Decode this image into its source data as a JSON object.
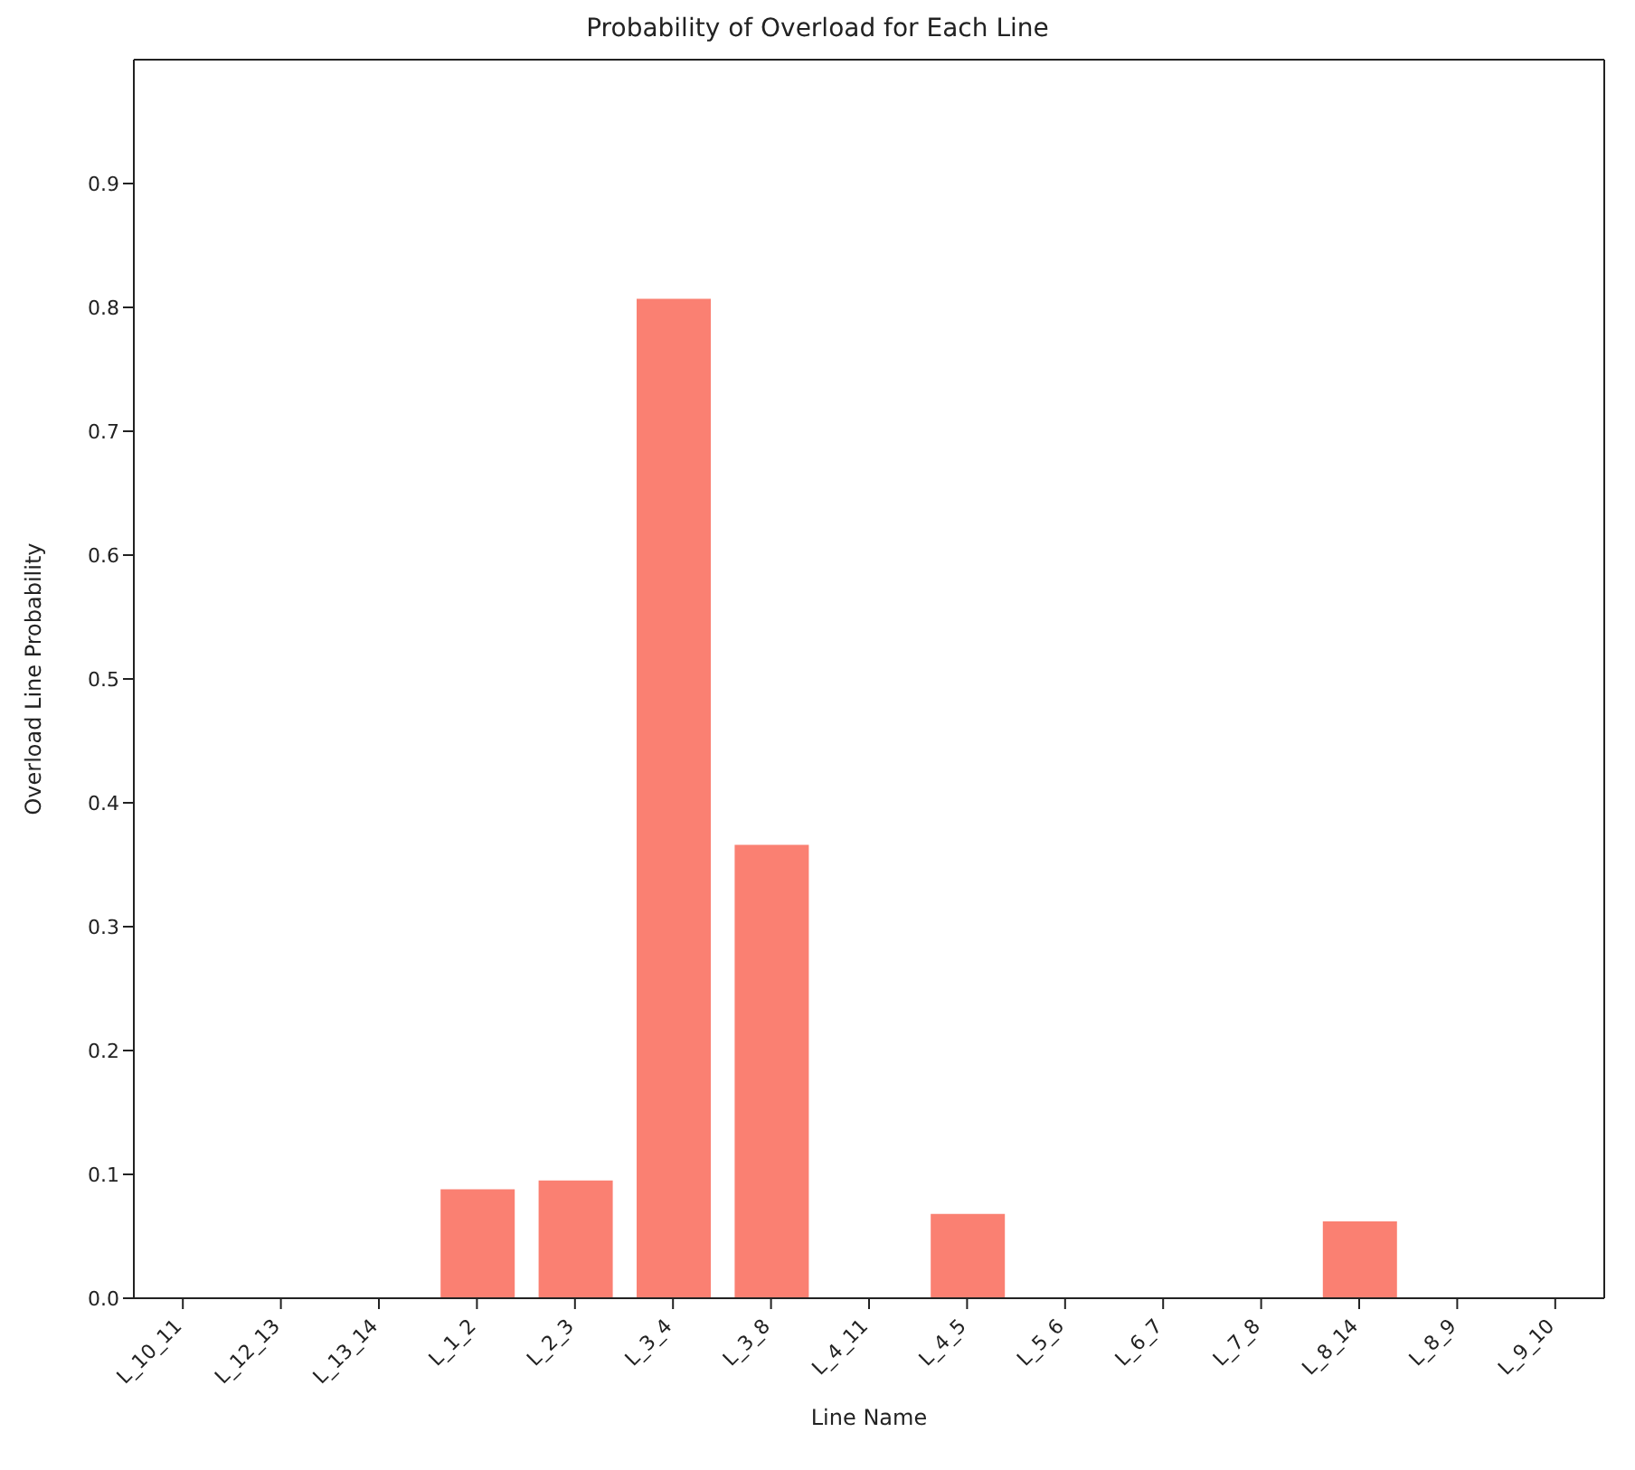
{
  "chart_data": {
    "type": "bar",
    "title": "Probability of Overload for Each Line",
    "xlabel": "Line Name",
    "ylabel": "Overload Line Probability",
    "categories": [
      "L_10_11",
      "L_12_13",
      "L_13_14",
      "L_1_2",
      "L_2_3",
      "L_3_4",
      "L_3_8",
      "L_4_11",
      "L_4_5",
      "L_5_6",
      "L_6_7",
      "L_7_8",
      "L_8_14",
      "L_8_9",
      "L_9_10"
    ],
    "values": [
      0,
      0,
      0,
      0.088,
      0.095,
      0.807,
      0.366,
      0,
      0.068,
      0,
      0,
      0,
      0.062,
      0,
      0
    ],
    "color": "#fa8072",
    "ylim": [
      0,
      1
    ],
    "yticks": [
      {
        "value": 0,
        "label": "0.0"
      },
      {
        "value": 0.1,
        "label": "0.1"
      },
      {
        "value": 0.2,
        "label": "0.2"
      },
      {
        "value": 0.3,
        "label": "0.3"
      },
      {
        "value": 0.4,
        "label": "0.4"
      },
      {
        "value": 0.5,
        "label": "0.5"
      },
      {
        "value": 0.6,
        "label": "0.6"
      },
      {
        "value": 0.7,
        "label": "0.7"
      },
      {
        "value": 0.8,
        "label": "0.8"
      },
      {
        "value": 0.9,
        "label": "0.9"
      }
    ],
    "grid": false,
    "legend": false
  }
}
